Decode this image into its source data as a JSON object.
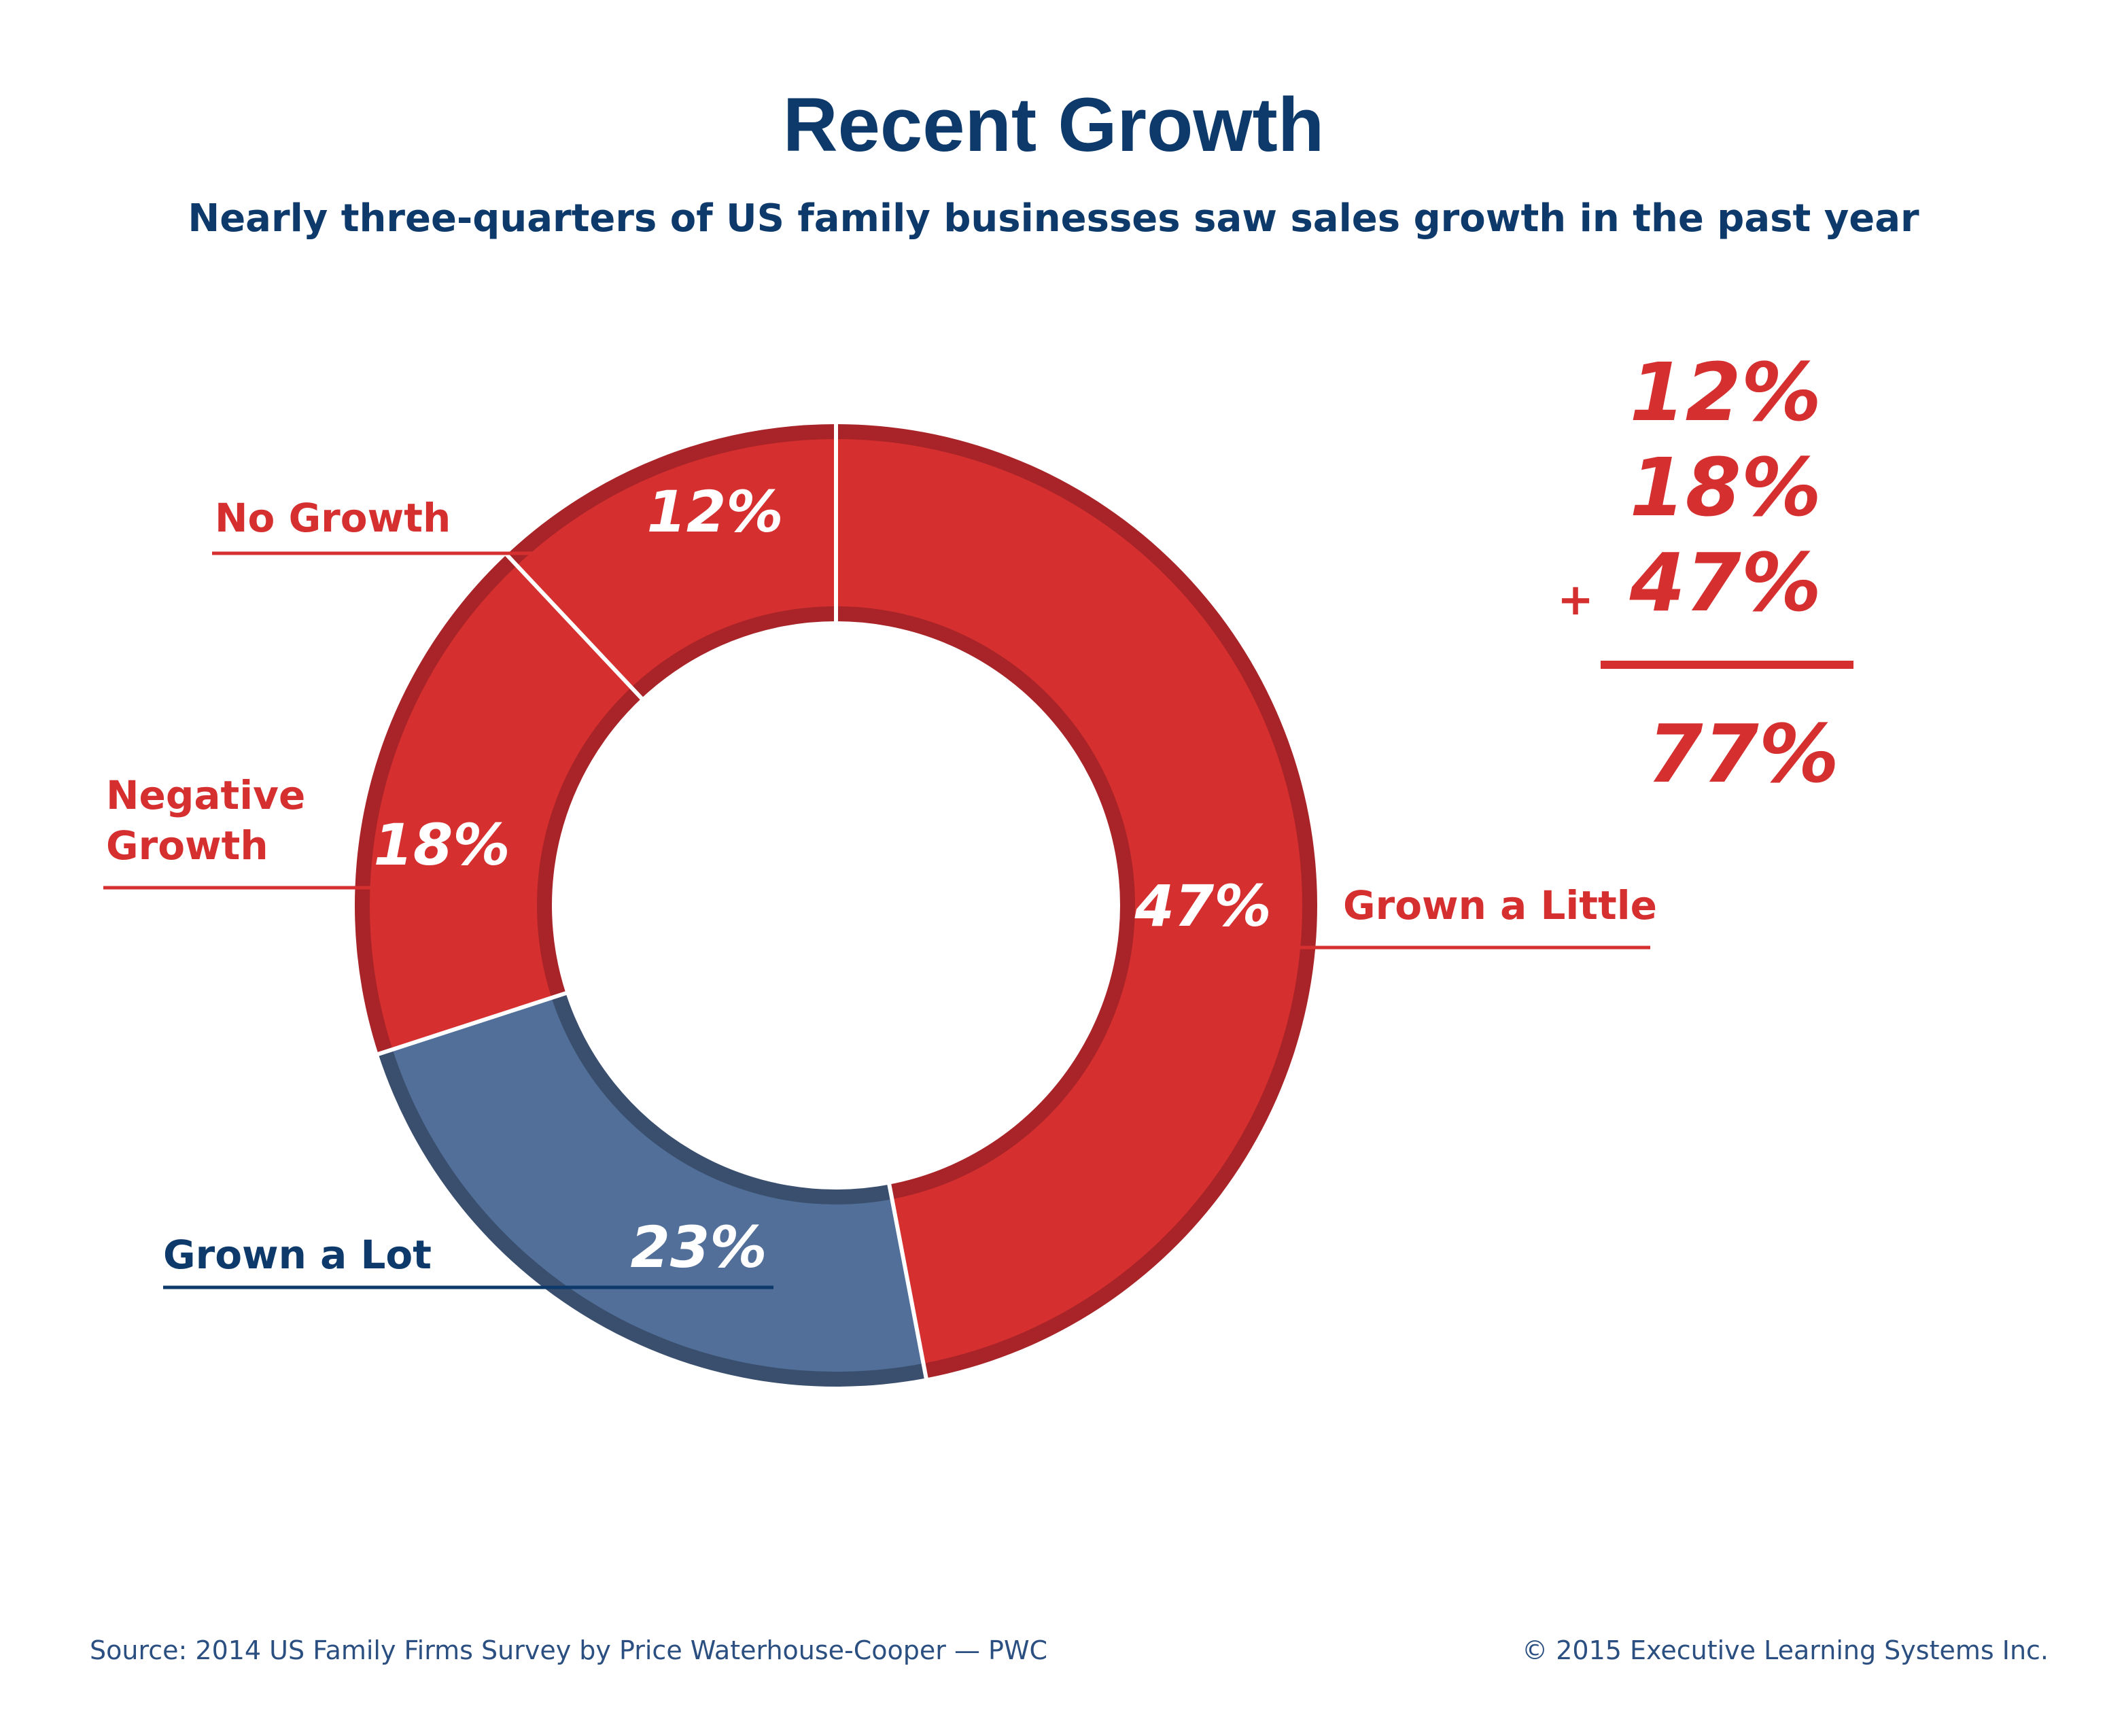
{
  "colors": {
    "red": "#d62f2f",
    "red_dark": "#a82428",
    "blue": "#516f98",
    "blue_dark": "#3a4f6e",
    "navy": "#0d3a6b"
  },
  "chart_data": {
    "type": "pie",
    "variant": "donut",
    "title": "Recent Growth",
    "subtitle": "Nearly three-quarters of US family businesses saw sales growth in the past year",
    "slices": [
      {
        "name": "Grown a Little",
        "value": 47,
        "label": "47%",
        "color": "#d62f2f"
      },
      {
        "name": "Grown a Lot",
        "value": 23,
        "label": "23%",
        "color": "#516f98"
      },
      {
        "name": "Negative Growth",
        "value": 18,
        "label": "18%",
        "color": "#d62f2f"
      },
      {
        "name": "No Growth",
        "value": 12,
        "label": "12%",
        "color": "#d62f2f"
      }
    ],
    "summation": {
      "addends": [
        "12%",
        "18%",
        "47%"
      ],
      "operator": "+",
      "total": "77%"
    }
  },
  "footer": {
    "source": "Source: 2014 US Family Firms Survey by Price Waterhouse-Cooper — PWC",
    "copyright": "© 2015 Executive Learning Systems Inc."
  }
}
